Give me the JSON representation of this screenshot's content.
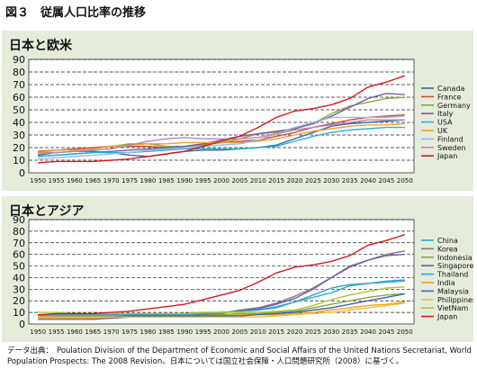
{
  "figure": {
    "title": "図３　従属人口比率の推移",
    "source_label": "データ出典：",
    "source_text": "Poulation Division of the Department of Economic and Social Affairs of the United Nations Secretariat, World Population Prospects: The 2008 Revision、日本については国立社会保障・人口問題研究所（2008）に基づく。"
  },
  "chart_data": [
    {
      "type": "line",
      "title": "日本と欧米",
      "x": [
        "1950",
        "1955",
        "1960",
        "1965",
        "1970",
        "1975",
        "1980",
        "1985",
        "1990",
        "1995",
        "2000",
        "2005",
        "2010",
        "2015",
        "2020",
        "2025",
        "2030",
        "2035",
        "2040",
        "2045",
        "2050"
      ],
      "ylim": [
        0,
        90
      ],
      "yticks": [
        0,
        10,
        20,
        30,
        40,
        50,
        60,
        70,
        80,
        90
      ],
      "grid": true,
      "legend": "right",
      "series": [
        {
          "name": "Canada",
          "color": "#3a66b0",
          "values": [
            14,
            16,
            17,
            17,
            16,
            14,
            13,
            15,
            17,
            18,
            18,
            19,
            20,
            22,
            27,
            32,
            37,
            39,
            40,
            41,
            42
          ]
        },
        {
          "name": "France",
          "color": "#d54a3a",
          "values": [
            17,
            18,
            19,
            20,
            21,
            21,
            21,
            20,
            21,
            23,
            24,
            25,
            26,
            29,
            32,
            36,
            39,
            42,
            44,
            45,
            46
          ]
        },
        {
          "name": "Germany",
          "color": "#8aa83a",
          "values": [
            16,
            16,
            17,
            19,
            21,
            23,
            23,
            21,
            21,
            22,
            24,
            27,
            31,
            32,
            35,
            39,
            47,
            53,
            56,
            59,
            60
          ]
        },
        {
          "name": "Italy",
          "color": "#7a5aa8",
          "values": [
            13,
            14,
            15,
            16,
            17,
            18,
            19,
            20,
            21,
            23,
            26,
            29,
            31,
            33,
            35,
            39,
            45,
            52,
            59,
            63,
            62
          ]
        },
        {
          "name": "USA",
          "color": "#2ab0d0",
          "values": [
            13,
            14,
            15,
            16,
            16,
            16,
            17,
            18,
            19,
            19,
            19,
            19,
            20,
            21,
            25,
            29,
            32,
            34,
            35,
            36,
            36
          ]
        },
        {
          "name": "UK",
          "color": "#f0a030",
          "values": [
            16,
            18,
            18,
            19,
            21,
            22,
            23,
            23,
            24,
            24,
            24,
            24,
            25,
            27,
            30,
            33,
            35,
            37,
            38,
            38,
            39
          ]
        },
        {
          "name": "Finland",
          "color": "#9ab8e0",
          "values": [
            11,
            12,
            13,
            14,
            15,
            16,
            18,
            19,
            20,
            21,
            22,
            23,
            26,
            31,
            36,
            40,
            44,
            44,
            44,
            44,
            45
          ]
        },
        {
          "name": "Sweden",
          "color": "#b08ab0",
          "values": [
            15,
            16,
            17,
            18,
            19,
            22,
            25,
            27,
            28,
            27,
            27,
            27,
            28,
            31,
            34,
            36,
            38,
            40,
            42,
            42,
            42
          ]
        },
        {
          "name": "Japan",
          "color": "#d81820",
          "values": [
            8,
            9,
            9,
            9,
            10,
            11,
            13,
            15,
            17,
            21,
            25,
            29,
            36,
            44,
            49,
            51,
            54,
            59,
            68,
            72,
            77
          ]
        }
      ]
    },
    {
      "type": "line",
      "title": "日本とアジア",
      "x": [
        "1950",
        "1955",
        "1960",
        "1965",
        "1970",
        "1975",
        "1980",
        "1985",
        "1990",
        "1995",
        "2000",
        "2005",
        "2010",
        "2015",
        "2020",
        "2025",
        "2030",
        "2035",
        "2040",
        "2045",
        "2050"
      ],
      "ylim": [
        0,
        90
      ],
      "yticks": [
        0,
        10,
        20,
        30,
        40,
        50,
        60,
        70,
        80,
        90
      ],
      "grid": true,
      "legend": "right",
      "series": [
        {
          "name": "China",
          "color": "#2ab0d0",
          "values": [
            7,
            7,
            7,
            7,
            7,
            7,
            8,
            8,
            9,
            9,
            10,
            11,
            12,
            15,
            19,
            23,
            27,
            33,
            35,
            37,
            38
          ]
        },
        {
          "name": "Korea",
          "color": "#7a7a7a",
          "values": [
            6,
            6,
            6,
            6,
            6,
            6,
            7,
            7,
            7,
            8,
            9,
            12,
            14,
            18,
            24,
            31,
            40,
            50,
            55,
            60,
            63
          ]
        },
        {
          "name": "Indonesia",
          "color": "#8aa83a",
          "values": [
            7,
            7,
            7,
            7,
            7,
            7,
            7,
            7,
            7,
            7,
            8,
            9,
            9,
            10,
            11,
            14,
            17,
            20,
            23,
            25,
            26
          ]
        },
        {
          "name": "Singapore",
          "color": "#7a5aa8",
          "values": [
            4,
            4,
            4,
            4,
            5,
            6,
            7,
            8,
            9,
            10,
            10,
            11,
            13,
            17,
            22,
            30,
            40,
            49,
            55,
            59,
            60
          ]
        },
        {
          "name": "Thailand",
          "color": "#3a9ad8",
          "values": [
            8,
            8,
            8,
            8,
            8,
            8,
            8,
            8,
            8,
            9,
            10,
            11,
            12,
            14,
            19,
            25,
            31,
            34,
            35,
            36,
            37
          ]
        },
        {
          "name": "India",
          "color": "#f0a030",
          "values": [
            5,
            5,
            5,
            5,
            6,
            6,
            6,
            7,
            7,
            7,
            7,
            8,
            8,
            8,
            9,
            10,
            12,
            14,
            16,
            17,
            19
          ]
        },
        {
          "name": "Malaysia",
          "color": "#3a66b0",
          "values": [
            6,
            6,
            6,
            6,
            6,
            7,
            7,
            7,
            7,
            7,
            7,
            7,
            8,
            9,
            10,
            12,
            14,
            17,
            20,
            23,
            26
          ]
        },
        {
          "name": "Philippines",
          "color": "#f0c030",
          "values": [
            6,
            6,
            6,
            6,
            6,
            6,
            6,
            6,
            6,
            6,
            6,
            6,
            6,
            7,
            8,
            9,
            10,
            12,
            14,
            16,
            18
          ]
        },
        {
          "name": "VietNam",
          "color": "#a8c838",
          "values": [
            10,
            10,
            9,
            9,
            9,
            9,
            9,
            9,
            9,
            10,
            10,
            10,
            10,
            11,
            12,
            16,
            21,
            25,
            28,
            31,
            32
          ]
        },
        {
          "name": "Japan",
          "color": "#d81820",
          "values": [
            8,
            9,
            9,
            9,
            10,
            11,
            13,
            15,
            17,
            21,
            25,
            29,
            36,
            44,
            49,
            51,
            54,
            59,
            68,
            72,
            77
          ]
        }
      ]
    }
  ]
}
